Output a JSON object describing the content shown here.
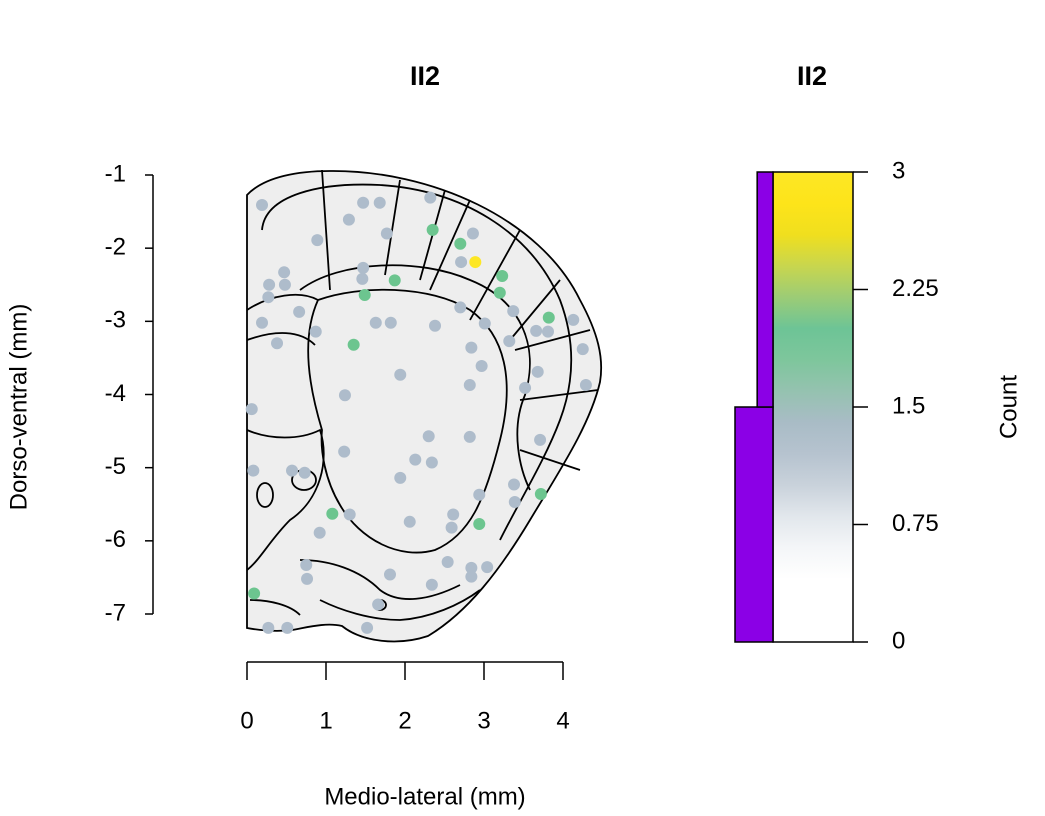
{
  "chart_data": [
    {
      "type": "scatter",
      "title": "II2",
      "x_label": "Medio-lateral (mm)",
      "y_label": "Dorso-ventral (mm)",
      "xlim": [
        0,
        4
      ],
      "ylim": [
        -7,
        -1
      ],
      "xticks": [
        0,
        1,
        2,
        3,
        4
      ],
      "yticks": [
        -1,
        -2,
        -3,
        -4,
        -5,
        -6,
        -7
      ],
      "series": [
        {
          "color": "#aebccb",
          "x": [
            0.19,
            1.47,
            1.68,
            2.32,
            1.29,
            1.77,
            0.89,
            2.86,
            2.71,
            0.47,
            0.28,
            0.48,
            1.47,
            1.46,
            0.27,
            0.66,
            2.7,
            3.01,
            3.37,
            0.19,
            1.63,
            1.82,
            0.87,
            2.38,
            3.66,
            3.81,
            4.13,
            3.32,
            0.38,
            2.84,
            4.25,
            2.97,
            1.94,
            3.68,
            4.29,
            2.82,
            3.52,
            1.24,
            0.06,
            2.82,
            2.3,
            3.71,
            1.23,
            2.13,
            2.34,
            0.08,
            0.57,
            0.73,
            1.94,
            2.94,
            3.38,
            3.39,
            1.3,
            2.61,
            2.06,
            2.59,
            0.92,
            0.75,
            2.54,
            3.04,
            2.84,
            0.76,
            1.81,
            2.84,
            2.34,
            1.66,
            0.27,
            0.51,
            1.52
          ],
          "values": [
            -1.41,
            -1.38,
            -1.38,
            -1.31,
            -1.61,
            -1.8,
            -1.89,
            -1.8,
            -2.19,
            -2.33,
            -2.5,
            -2.5,
            -2.27,
            -2.42,
            -2.67,
            -2.87,
            -2.81,
            -3.03,
            -2.86,
            -3.02,
            -3.02,
            -3.02,
            -3.14,
            -3.06,
            -3.13,
            -3.14,
            -2.98,
            -3.27,
            -3.3,
            -3.36,
            -3.38,
            -3.61,
            -3.73,
            -3.69,
            -3.87,
            -3.87,
            -3.91,
            -4.01,
            -4.2,
            -4.58,
            -4.57,
            -4.62,
            -4.78,
            -4.89,
            -4.93,
            -5.04,
            -5.04,
            -5.07,
            -5.14,
            -5.37,
            -5.23,
            -5.47,
            -5.64,
            -5.64,
            -5.74,
            -5.82,
            -5.89,
            -6.33,
            -6.29,
            -6.36,
            -6.37,
            -6.52,
            -6.46,
            -6.49,
            -6.6,
            -6.87,
            -7.19,
            -7.19,
            -7.19
          ]
        },
        {
          "color": "#6cc58f",
          "x": [
            2.35,
            2.7,
            3.23,
            3.2,
            1.87,
            1.49,
            3.82,
            1.35,
            3.72,
            1.08,
            2.94,
            0.09
          ],
          "values": [
            -1.75,
            -1.94,
            -2.38,
            -2.61,
            -2.44,
            -2.64,
            -2.95,
            -3.32,
            -5.36,
            -5.63,
            -5.77,
            -6.72
          ]
        },
        {
          "color": "#fde725",
          "x": [
            2.89
          ],
          "values": [
            -2.19
          ]
        }
      ]
    },
    {
      "type": "colorbar",
      "title": "II2",
      "y_label": "Count",
      "ylim": [
        0,
        3
      ],
      "yticks": [
        0,
        0.75,
        1.5,
        2.25,
        3
      ],
      "colors": [
        "#ffffff",
        "#ffffff",
        "#ffffff",
        "#f4f6f8",
        "#e2e7ec",
        "#c9d2db",
        "#b6c3cf",
        "#a9bcc6",
        "#95c2b0",
        "#7ec69c",
        "#6dc496",
        "#9ccc76",
        "#c8d64e",
        "#f0df1e",
        "#fde41a",
        "#fde725"
      ],
      "bins": [
        0,
        1.5,
        3
      ],
      "counts": [
        2.4,
        1
      ],
      "bar_color": "#8b00e6"
    }
  ]
}
